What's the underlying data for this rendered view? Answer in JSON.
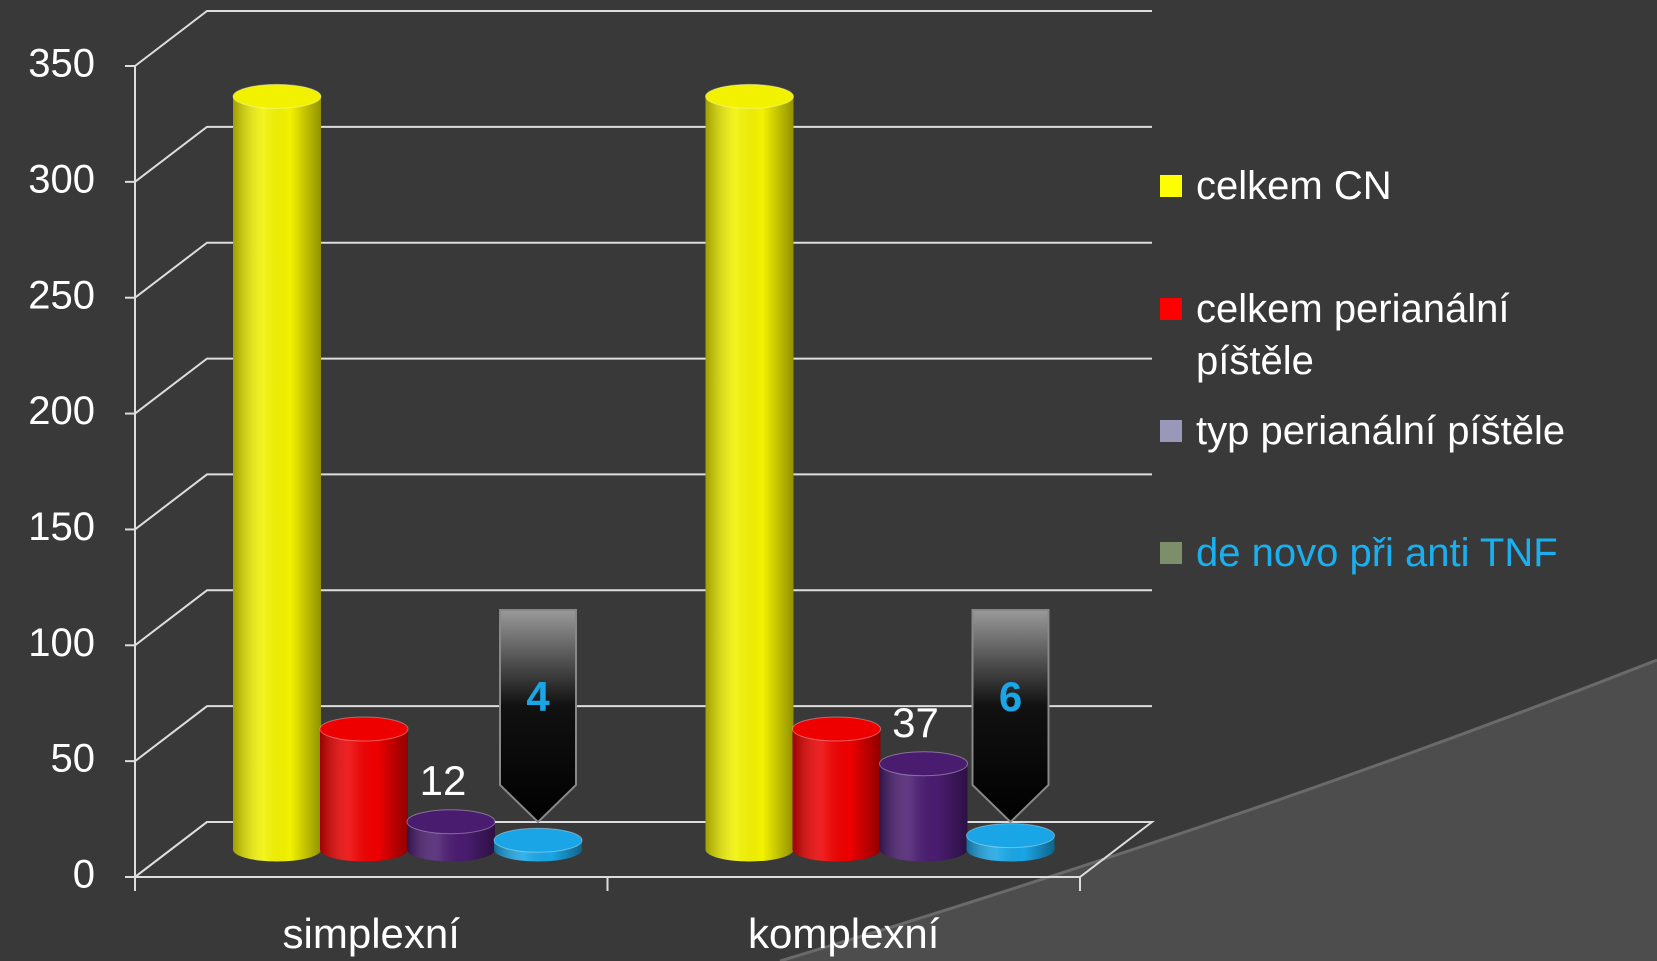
{
  "chart_data": {
    "type": "bar3d",
    "categories": [
      "simplexní",
      "komplexní"
    ],
    "series": [
      {
        "name": "celkem CN",
        "color": "#f2f200",
        "legend_color": "#ffff00",
        "values": [
          325,
          325
        ]
      },
      {
        "name": "celkem perianální píštěle",
        "color": "#ee0000",
        "legend_color": "#ff0000",
        "values": [
          52,
          52
        ]
      },
      {
        "name": "typ perianální píštěle",
        "color": "#4a1c70",
        "legend_color": "#9a98b8",
        "values": [
          12,
          37
        ]
      },
      {
        "name": "de novo při anti TNF",
        "color": "#1aa6e6",
        "legend_color": "#7d8f6a",
        "legend_text_color": "#1ab0f0",
        "values": [
          4,
          6
        ]
      }
    ],
    "ylim": [
      0,
      350
    ],
    "yticks": [
      0,
      50,
      100,
      150,
      200,
      250,
      300,
      350
    ],
    "grid": true
  }
}
